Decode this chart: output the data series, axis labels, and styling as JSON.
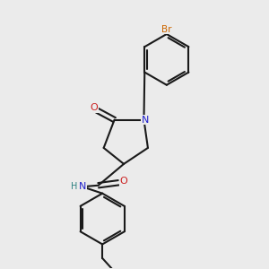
{
  "background_color": "#ebebeb",
  "bond_color": "#1a1a1a",
  "n_color": "#2020cc",
  "o_color": "#cc2020",
  "br_color": "#cc6600",
  "h_color": "#2a8080",
  "figsize": [
    3.0,
    3.0
  ],
  "dpi": 100,
  "xlim": [
    0,
    10
  ],
  "ylim": [
    0,
    10
  ]
}
